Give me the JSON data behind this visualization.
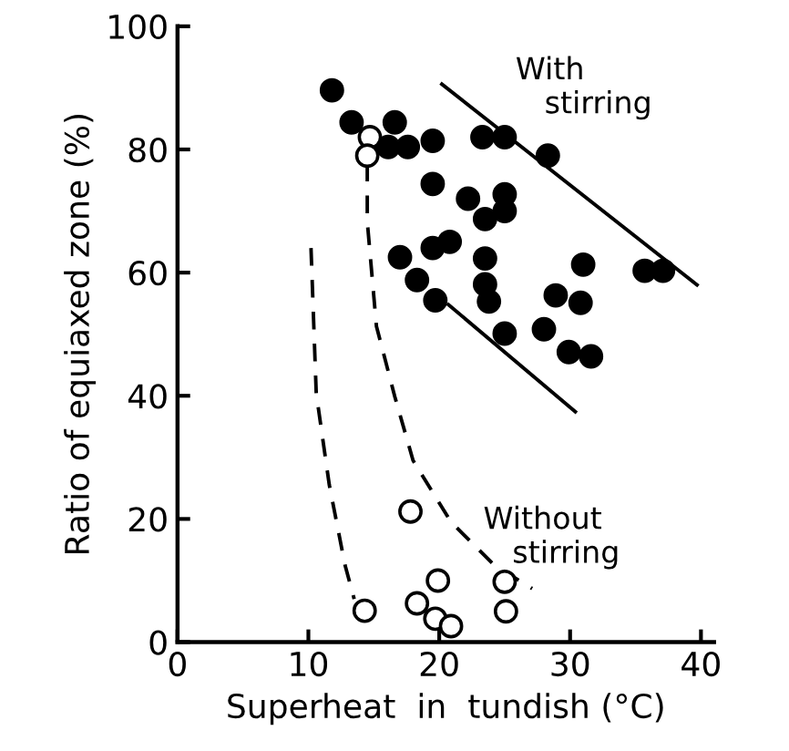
{
  "chart_data": {
    "type": "scatter",
    "xlabel": "Superheat  in  tundish (°C)",
    "ylabel": "Ratio of equiaxed zone (%)",
    "xlim": [
      0,
      41
    ],
    "ylim": [
      0,
      100
    ],
    "xticks": [
      0,
      10,
      20,
      30,
      40
    ],
    "yticks": [
      0,
      20,
      40,
      60,
      80,
      100
    ],
    "grid": false,
    "legend": false,
    "series": [
      {
        "marker": "circle",
        "color": "#000000",
        "x": [
          11.8,
          13.3,
          16.6,
          16.1,
          17.6,
          19.5,
          23.3,
          25,
          28.3,
          19.5,
          22.2,
          25,
          25,
          23.5,
          17,
          19.5,
          20.8,
          23.5,
          31,
          35.7,
          37.1,
          18.3,
          23.5,
          19.7,
          23.8,
          28.9,
          30.8,
          25,
          28,
          29.9,
          31.6
        ],
        "values": [
          89.6,
          84.4,
          84.4,
          80.4,
          80.4,
          81.4,
          82,
          82,
          79,
          74.4,
          72,
          72.7,
          70,
          68.7,
          62.5,
          64,
          65,
          62.3,
          61.3,
          60.3,
          60.3,
          58.8,
          58.1,
          55.5,
          55.3,
          56.3,
          55.1,
          50.1,
          50.8,
          47.1,
          46.4
        ]
      },
      {
        "marker": "circle",
        "color": "#ffffff",
        "x": [
          14.7,
          14.5,
          17.8,
          14.3,
          18.3,
          19.9,
          19.7,
          20.9,
          25,
          25.1
        ],
        "values": [
          82,
          79,
          21.2,
          5.1,
          6.3,
          10,
          3.8,
          2.6,
          9.8,
          5
        ]
      },
      {
        "type": "line",
        "line_style": "solid",
        "marker": "none",
        "color": "#000000",
        "x": [
          20.2,
          39.7
        ],
        "values": [
          90.6,
          58
        ]
      },
      {
        "type": "line",
        "line_style": "solid",
        "marker": "none",
        "color": "#000000",
        "x": [
          20.7,
          30.4
        ],
        "values": [
          54.8,
          37.4
        ]
      },
      {
        "type": "line",
        "line_style": "dashed",
        "marker": "none",
        "color": "#000000",
        "x": [
          10.2,
          10.6,
          11.6,
          12.8,
          13.5
        ],
        "values": [
          64,
          40.4,
          25.5,
          12.5,
          7
        ]
      },
      {
        "type": "line",
        "line_style": "dashed",
        "marker": "none",
        "color": "#000000",
        "x": [
          14.5,
          14.5,
          15.2,
          16.6,
          18,
          20.9,
          24.2,
          27.1
        ],
        "values": [
          77.7,
          68.3,
          51.3,
          39.9,
          29.5,
          19.5,
          12.5,
          8.7
        ]
      }
    ],
    "annotations": [
      "With\n   stirring",
      "Without\n   stirring"
    ]
  }
}
